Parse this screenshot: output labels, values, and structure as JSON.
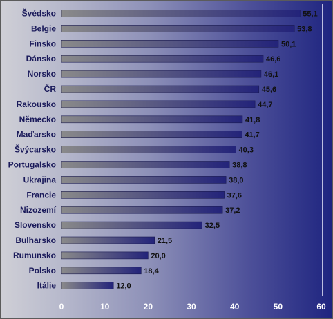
{
  "chart_data": {
    "type": "bar",
    "orientation": "horizontal",
    "categories": [
      "Švédsko",
      "Belgie",
      "Finsko",
      "Dánsko",
      "Norsko",
      "ČR",
      "Rakousko",
      "Německo",
      "Maďarsko",
      "Švýcarsko",
      "Portugalsko",
      "Ukrajina",
      "Francie",
      "Nizozemí",
      "Slovensko",
      "Bulharsko",
      "Rumunsko",
      "Polsko",
      "Itálie"
    ],
    "values": [
      55.1,
      53.8,
      50.1,
      46.6,
      46.1,
      45.6,
      44.7,
      41.8,
      41.7,
      40.3,
      38.8,
      38.0,
      37.6,
      37.2,
      32.5,
      21.5,
      20.0,
      18.4,
      12.0
    ],
    "value_labels": [
      "55,1",
      "53,8",
      "50,1",
      "46,6",
      "46,1",
      "45,6",
      "44,7",
      "41,8",
      "41,7",
      "40,3",
      "38,8",
      "38,0",
      "37,6",
      "37,2",
      "32,5",
      "21,5",
      "20,0",
      "18,4",
      "12,0"
    ],
    "xlim": [
      0,
      60
    ],
    "x_ticks": [
      "0",
      "10",
      "20",
      "30",
      "40",
      "50",
      "60"
    ],
    "grid": false,
    "legend": "none",
    "colors": {
      "bar_start": "#8a8a8a",
      "bar_end": "#23237a",
      "category_text": "#1a1a5a",
      "tick_text": "#ffffff"
    }
  }
}
